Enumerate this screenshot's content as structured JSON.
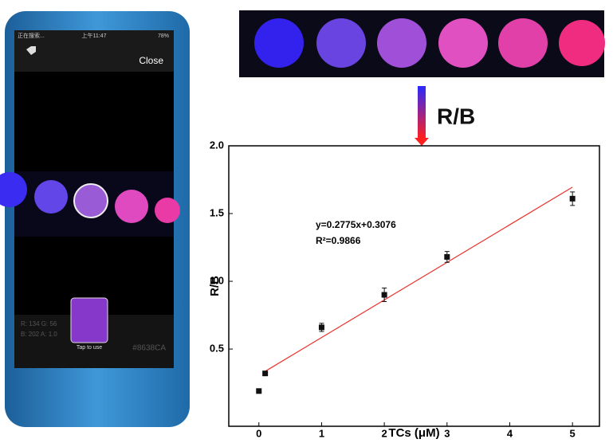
{
  "chart_data": {
    "type": "scatter",
    "xlabel": "TCs (μM)",
    "ylabel": "R/B",
    "x": [
      0,
      0.1,
      1,
      2,
      3,
      5
    ],
    "values": [
      0.19,
      0.32,
      0.66,
      0.9,
      1.18,
      1.61
    ],
    "errors": [
      0.01,
      0.01,
      0.03,
      0.05,
      0.04,
      0.05
    ],
    "color": "#111111",
    "fit": {
      "x": [
        0.1,
        5
      ],
      "values": [
        0.3354,
        1.695
      ],
      "color": "#e8322b"
    },
    "annotations": [
      "y=0.2775x+0.3076",
      "R²=0.9866"
    ],
    "xlim": [
      -0.48,
      5.43
    ],
    "ylim": [
      -0.07,
      2.0
    ],
    "xticks": [
      0,
      1,
      2,
      3,
      4,
      5
    ],
    "yticks": [
      0.5,
      {
        "value": 1,
        "label": "1.0"
      },
      1.5,
      {
        "value": 2,
        "label": "2.0"
      }
    ],
    "grid": false
  },
  "arrow_label": "R/B",
  "phone": {
    "status_left": "正在搜索...",
    "status_time": "上午11:47",
    "status_battery": "78%",
    "close": "Close",
    "rgb_line1": "R: 134 G: 56",
    "rgb_line2": "B: 202 A: 1.0",
    "tap": "Tap to use",
    "hex": "#8638CA"
  }
}
